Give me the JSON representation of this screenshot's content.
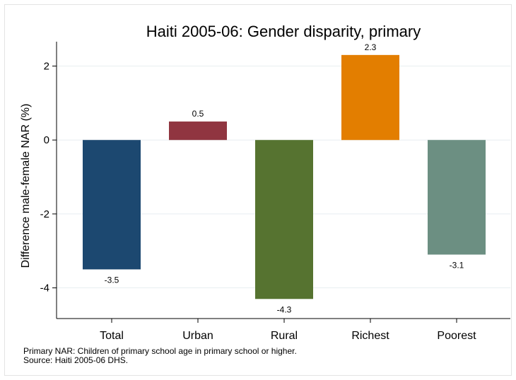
{
  "chart_data": {
    "type": "bar",
    "title": "Haiti 2005-06: Gender disparity, primary",
    "xlabel": "",
    "ylabel": "Difference male-female NAR (%)",
    "categories": [
      "Total",
      "Urban",
      "Rural",
      "Richest",
      "Poorest"
    ],
    "values": [
      -3.5,
      0.5,
      -4.3,
      2.3,
      -3.1
    ],
    "value_labels": [
      "-3.5",
      "0.5",
      "-4.3",
      "2.3",
      "-3.1"
    ],
    "colors": [
      "#1c4870",
      "#903540",
      "#567330",
      "#e37e00",
      "#6c8f82"
    ],
    "ylim": [
      -4.83,
      2.66
    ],
    "yticks": [
      2,
      0,
      -2,
      -4
    ],
    "ytick_labels": [
      "2",
      "0",
      "-2",
      "-4"
    ],
    "grid": true,
    "legend": "none"
  },
  "notes": {
    "line1": "Primary NAR: Children of primary school age in primary school or higher.",
    "line2": "Source: Haiti 2005-06 DHS."
  }
}
